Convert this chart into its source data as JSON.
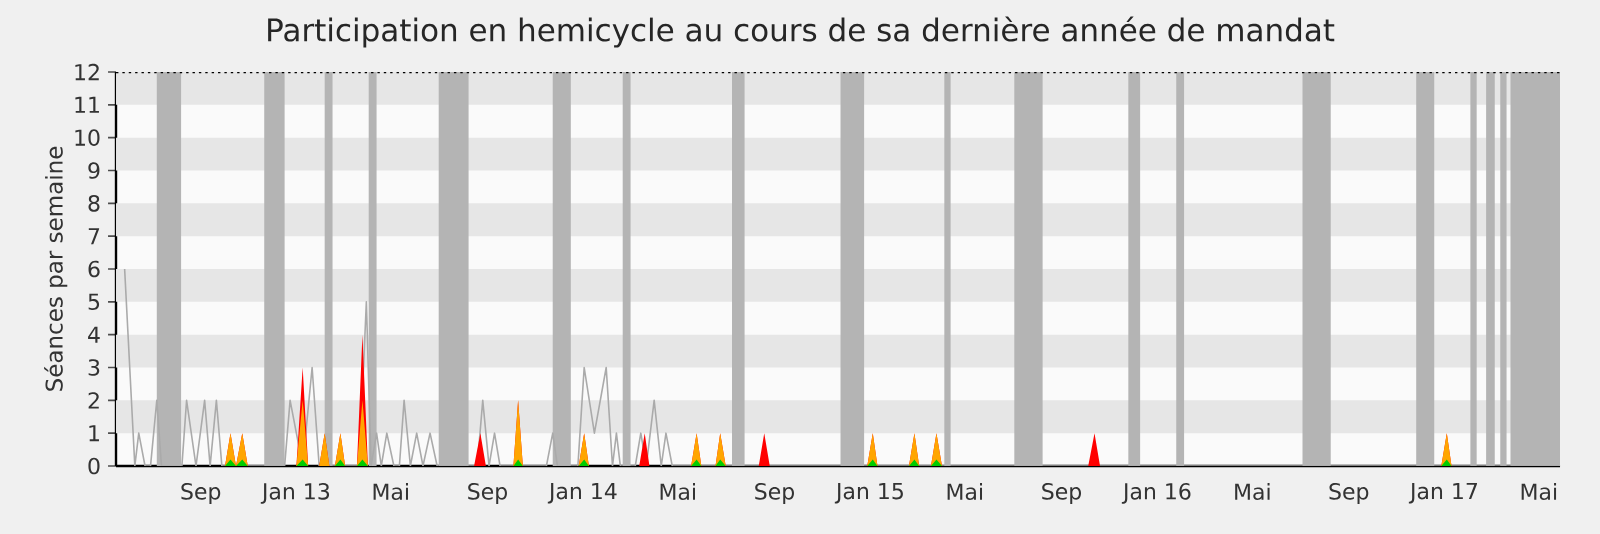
{
  "chart_data": {
    "type": "area",
    "title": "Participation en hemicycle au cours de sa dernière année de mandat",
    "ylabel": "Séances par semaine",
    "xlim": [
      "2012-05-16",
      "2017-05-28"
    ],
    "ylim": [
      0,
      12
    ],
    "xticks": [
      {
        "value": "2012-09-01",
        "label": "Sep"
      },
      {
        "value": "2013-01-01",
        "label": "Jan 13"
      },
      {
        "value": "2013-05-01",
        "label": "Mai"
      },
      {
        "value": "2013-09-01",
        "label": "Sep"
      },
      {
        "value": "2014-01-01",
        "label": "Jan 14"
      },
      {
        "value": "2014-05-01",
        "label": "Mai"
      },
      {
        "value": "2014-09-01",
        "label": "Sep"
      },
      {
        "value": "2015-01-01",
        "label": "Jan 15"
      },
      {
        "value": "2015-05-01",
        "label": "Mai"
      },
      {
        "value": "2015-09-01",
        "label": "Sep"
      },
      {
        "value": "2016-01-01",
        "label": "Jan 16"
      },
      {
        "value": "2016-05-01",
        "label": "Mai"
      },
      {
        "value": "2016-09-01",
        "label": "Sep"
      },
      {
        "value": "2017-01-01",
        "label": "Jan 17"
      },
      {
        "value": "2017-05-01",
        "label": "Mai"
      }
    ],
    "yticks": [
      0,
      1,
      2,
      3,
      4,
      5,
      6,
      7,
      8,
      9,
      10,
      11,
      12
    ],
    "bands": [
      {
        "axis": "y",
        "from": 1,
        "to": 2,
        "color": "#e6e6e6"
      },
      {
        "axis": "y",
        "from": 3,
        "to": 4,
        "color": "#e6e6e6"
      },
      {
        "axis": "y",
        "from": 5,
        "to": 6,
        "color": "#e6e6e6"
      },
      {
        "axis": "y",
        "from": 7,
        "to": 8,
        "color": "#e6e6e6"
      },
      {
        "axis": "y",
        "from": 9,
        "to": 10,
        "color": "#e6e6e6"
      },
      {
        "axis": "y",
        "from": 11,
        "to": 12,
        "color": "#e6e6e6"
      },
      {
        "axis": "x",
        "from": "2012-07-07",
        "to": "2012-08-07",
        "color": "#b4b4b4"
      },
      {
        "axis": "x",
        "from": "2012-11-21",
        "to": "2012-12-17",
        "color": "#b4b4b4"
      },
      {
        "axis": "x",
        "from": "2013-02-06",
        "to": "2013-02-16",
        "color": "#b4b4b4"
      },
      {
        "axis": "x",
        "from": "2013-04-03",
        "to": "2013-04-13",
        "color": "#b4b4b4"
      },
      {
        "axis": "x",
        "from": "2013-07-01",
        "to": "2013-08-08",
        "color": "#b4b4b4"
      },
      {
        "axis": "x",
        "from": "2013-11-23",
        "to": "2013-12-16",
        "color": "#b4b4b4"
      },
      {
        "axis": "x",
        "from": "2014-02-20",
        "to": "2014-03-02",
        "color": "#b4b4b4"
      },
      {
        "axis": "x",
        "from": "2014-07-09",
        "to": "2014-07-25",
        "color": "#b4b4b4"
      },
      {
        "axis": "x",
        "from": "2014-11-24",
        "to": "2014-12-24",
        "color": "#b4b4b4"
      },
      {
        "axis": "x",
        "from": "2015-04-05",
        "to": "2015-04-13",
        "color": "#b4b4b4"
      },
      {
        "axis": "x",
        "from": "2015-07-03",
        "to": "2015-08-08",
        "color": "#b4b4b4"
      },
      {
        "axis": "x",
        "from": "2015-11-25",
        "to": "2015-12-10",
        "color": "#b4b4b4"
      },
      {
        "axis": "x",
        "from": "2016-01-25",
        "to": "2016-02-04",
        "color": "#b4b4b4"
      },
      {
        "axis": "x",
        "from": "2016-07-04",
        "to": "2016-08-09",
        "color": "#b4b4b4"
      },
      {
        "axis": "x",
        "from": "2016-11-26",
        "to": "2016-12-19",
        "color": "#b4b4b4"
      },
      {
        "axis": "x",
        "from": "2017-02-03",
        "to": "2017-02-11",
        "color": "#b4b4b4"
      },
      {
        "axis": "x",
        "from": "2017-02-23",
        "to": "2017-03-06",
        "color": "#b4b4b4"
      },
      {
        "axis": "x",
        "from": "2017-03-13",
        "to": "2017-03-21",
        "color": "#b4b4b4"
      },
      {
        "axis": "x",
        "from": "2017-03-26",
        "to": "2017-05-28",
        "color": "#b4b4b4"
      }
    ],
    "ref_lines": [
      {
        "axis": "y",
        "value": 12,
        "color": "#000000",
        "line_style": "dotted"
      }
    ],
    "series": [
      {
        "type": "line",
        "color": "#aaaaaa",
        "x": [
          "2012-05-27",
          "2012-06-09",
          "2012-06-14",
          "2012-06-22",
          "2012-06-29",
          "2012-07-07",
          "2012-07-13",
          "2012-08-08",
          "2012-08-14",
          "2012-08-26",
          "2012-09-06",
          "2012-09-13",
          "2012-09-21",
          "2012-09-28",
          "2012-12-17",
          "2012-12-24",
          "2013-01-09",
          "2013-01-21",
          "2013-01-30",
          "2013-03-22",
          "2013-03-31",
          "2013-04-06",
          "2013-04-13",
          "2013-04-19",
          "2013-04-26",
          "2013-05-05",
          "2013-05-12",
          "2013-05-18",
          "2013-05-26",
          "2013-06-03",
          "2013-06-11",
          "2013-06-20",
          "2013-06-29",
          "2013-08-19",
          "2013-08-26",
          "2013-09-03",
          "2013-09-10",
          "2013-09-17",
          "2013-11-15",
          "2013-11-23",
          "2013-11-29",
          "2013-12-25",
          "2014-01-02",
          "2014-01-15",
          "2014-01-30",
          "2014-02-07",
          "2014-02-12",
          "2014-02-17",
          "2014-03-08",
          "2014-03-15",
          "2014-03-22",
          "2014-04-01",
          "2014-04-10",
          "2014-04-16",
          "2014-04-24",
          "2017-05-27"
        ],
        "values": [
          6,
          0,
          1,
          0,
          0,
          2,
          0,
          0,
          2,
          0,
          2,
          0,
          2,
          0,
          0,
          2,
          0,
          3,
          0,
          0,
          5,
          0,
          1,
          0,
          1,
          0,
          0,
          2,
          0,
          1,
          0,
          1,
          0,
          0,
          2,
          0,
          1,
          0,
          0,
          1,
          0,
          0,
          3,
          1,
          3,
          0,
          1,
          0,
          0,
          1,
          0,
          2,
          0,
          1,
          0,
          0
        ]
      },
      {
        "color": "#ff0000",
        "x": [
          "2012-10-02",
          "2012-10-09",
          "2012-10-16",
          "2012-10-24",
          "2012-10-31",
          "2013-01-01",
          "2013-01-09",
          "2013-01-16",
          "2013-01-30",
          "2013-02-06",
          "2013-02-12",
          "2013-02-19",
          "2013-02-26",
          "2013-03-04",
          "2013-03-19",
          "2013-03-26",
          "2013-04-02",
          "2013-08-15",
          "2013-08-23",
          "2013-08-30",
          "2013-10-04",
          "2013-10-10",
          "2013-10-16",
          "2013-12-26",
          "2014-01-02",
          "2014-01-08",
          "2014-03-13",
          "2014-03-20",
          "2014-03-26",
          "2014-05-18",
          "2014-05-25",
          "2014-05-31",
          "2014-06-18",
          "2014-06-24",
          "2014-07-01",
          "2014-08-12",
          "2014-08-19",
          "2014-08-26",
          "2014-12-28",
          "2015-01-04",
          "2015-01-10",
          "2015-02-19",
          "2015-02-26",
          "2015-03-04",
          "2015-03-19",
          "2015-03-26",
          "2015-04-02",
          "2015-10-05",
          "2015-10-13",
          "2015-10-20",
          "2016-12-28",
          "2017-01-04",
          "2017-01-10"
        ],
        "values": [
          0,
          1,
          0,
          1,
          0,
          0,
          3,
          0,
          0,
          1,
          0,
          0,
          1,
          0,
          0,
          4,
          0,
          0,
          1,
          0,
          0,
          2,
          0,
          0,
          1,
          0,
          0,
          1,
          0,
          0,
          1,
          0,
          0,
          1,
          0,
          0,
          1,
          0,
          0,
          1,
          0,
          0,
          1,
          0,
          0,
          1,
          0,
          0,
          1,
          0,
          0,
          1,
          0
        ]
      },
      {
        "color": "#ffa500",
        "x": [
          "2012-10-02",
          "2012-10-09",
          "2012-10-16",
          "2012-10-24",
          "2012-10-31",
          "2013-01-01",
          "2013-01-09",
          "2013-01-16",
          "2013-01-30",
          "2013-02-06",
          "2013-02-12",
          "2013-02-19",
          "2013-02-26",
          "2013-03-04",
          "2013-03-19",
          "2013-03-26",
          "2013-04-02",
          "2013-10-04",
          "2013-10-10",
          "2013-10-16",
          "2013-12-26",
          "2014-01-02",
          "2014-01-08",
          "2014-05-18",
          "2014-05-25",
          "2014-05-31",
          "2014-06-18",
          "2014-06-24",
          "2014-07-01",
          "2014-12-28",
          "2015-01-04",
          "2015-01-10",
          "2015-02-19",
          "2015-02-26",
          "2015-03-04",
          "2015-03-19",
          "2015-03-26",
          "2015-04-02",
          "2016-12-28",
          "2017-01-04",
          "2017-01-10"
        ],
        "values": [
          0,
          1,
          0,
          1,
          0,
          0,
          2,
          0,
          0,
          1,
          0,
          0,
          1,
          0,
          0,
          2,
          0,
          0,
          2,
          0,
          0,
          1,
          0,
          0,
          1,
          0,
          0,
          1,
          0,
          0,
          1,
          0,
          0,
          1,
          0,
          0,
          1,
          0,
          0,
          1,
          0
        ]
      },
      {
        "color": "#00cc00",
        "x": [
          "2012-10-02",
          "2012-10-09",
          "2012-10-16",
          "2012-10-24",
          "2012-10-31",
          "2013-01-01",
          "2013-01-09",
          "2013-01-16",
          "2013-02-19",
          "2013-02-26",
          "2013-03-04",
          "2013-03-19",
          "2013-03-26",
          "2013-04-02",
          "2013-10-04",
          "2013-10-10",
          "2013-10-16",
          "2013-12-26",
          "2014-01-02",
          "2014-01-08",
          "2014-05-18",
          "2014-05-25",
          "2014-05-31",
          "2014-06-18",
          "2014-06-24",
          "2014-07-01",
          "2014-12-28",
          "2015-01-04",
          "2015-01-10",
          "2015-02-19",
          "2015-02-26",
          "2015-03-04",
          "2015-03-19",
          "2015-03-26",
          "2015-04-02",
          "2016-12-28",
          "2017-01-04",
          "2017-01-10"
        ],
        "values": [
          0,
          0.2,
          0,
          0.2,
          0,
          0,
          0.2,
          0,
          0,
          0.2,
          0,
          0,
          0.2,
          0,
          0,
          0.2,
          0,
          0,
          0.2,
          0,
          0,
          0.2,
          0,
          0,
          0.2,
          0,
          0,
          0.2,
          0,
          0,
          0.2,
          0,
          0,
          0.2,
          0,
          0,
          0.2,
          0
        ]
      }
    ]
  }
}
